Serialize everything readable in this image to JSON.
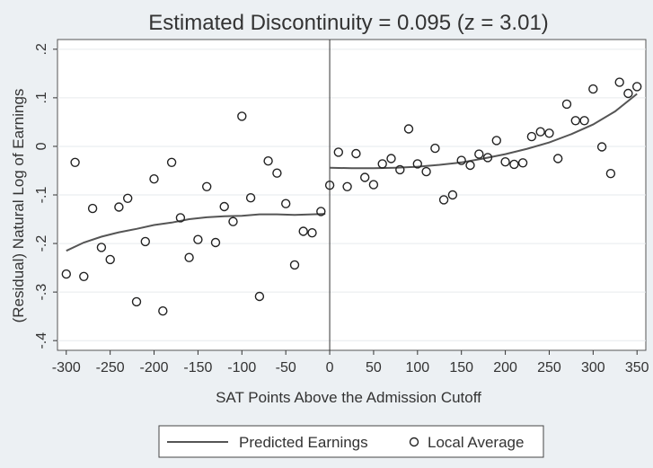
{
  "chart_data": {
    "type": "scatter",
    "title": "Estimated Discontinuity = 0.095 (z = 3.01)",
    "xlabel": "SAT Points Above the Admission Cutoff",
    "ylabel": "(Residual) Natural Log of Earnings",
    "xlim": [
      -310,
      360
    ],
    "ylim": [
      -0.42,
      0.22
    ],
    "xticks": [
      -300,
      -250,
      -200,
      -150,
      -100,
      -50,
      0,
      50,
      100,
      150,
      200,
      250,
      300,
      350
    ],
    "xtick_labels": [
      "-300",
      "-250",
      "-200",
      "-150",
      "-100",
      "-50",
      "0",
      "50",
      "100",
      "150",
      "200",
      "250",
      "300",
      "350"
    ],
    "yticks": [
      0.2,
      0.1,
      0,
      -0.1,
      -0.2,
      -0.3,
      -0.4
    ],
    "ytick_labels": [
      ".2",
      ".1",
      "0",
      "-.1",
      "-.2",
      "-.3",
      "-.4"
    ],
    "cutoff_x": 0,
    "grid": "horizontal",
    "legend_position": "bottom",
    "legend": [
      "Predicted Earnings",
      "Local Average"
    ],
    "series": [
      {
        "name": "Local Average",
        "kind": "points",
        "x": [
          -300,
          -290,
          -280,
          -270,
          -260,
          -250,
          -240,
          -230,
          -220,
          -210,
          -200,
          -190,
          -180,
          -170,
          -160,
          -150,
          -140,
          -130,
          -120,
          -110,
          -100,
          -90,
          -80,
          -70,
          -60,
          -50,
          -40,
          -30,
          -20,
          -10,
          0,
          10,
          20,
          30,
          40,
          50,
          60,
          70,
          80,
          90,
          100,
          110,
          120,
          130,
          140,
          150,
          160,
          170,
          180,
          190,
          200,
          210,
          220,
          230,
          240,
          250,
          260,
          270,
          280,
          290,
          300,
          310,
          320,
          330,
          340,
          350
        ],
        "y": [
          -0.263,
          -0.033,
          -0.268,
          -0.128,
          -0.208,
          -0.233,
          -0.125,
          -0.107,
          -0.32,
          -0.196,
          -0.067,
          -0.339,
          -0.033,
          -0.147,
          -0.229,
          -0.192,
          -0.083,
          -0.198,
          -0.124,
          -0.155,
          0.062,
          -0.106,
          -0.309,
          -0.03,
          -0.055,
          -0.118,
          -0.244,
          -0.175,
          -0.178,
          -0.134,
          -0.08,
          -0.012,
          -0.083,
          -0.015,
          -0.064,
          -0.079,
          -0.036,
          -0.025,
          -0.048,
          0.036,
          -0.036,
          -0.052,
          -0.004,
          -0.11,
          -0.1,
          -0.029,
          -0.039,
          -0.016,
          -0.023,
          0.012,
          -0.032,
          -0.037,
          -0.034,
          0.02,
          0.03,
          0.027,
          -0.025,
          0.087,
          0.053,
          0.053,
          0.118,
          -0.001,
          -0.056,
          0.132,
          0.109,
          0.123
        ]
      },
      {
        "name": "Predicted Earnings",
        "kind": "line",
        "segments": [
          {
            "x": [
              -300,
              -280,
              -260,
              -240,
              -220,
              -200,
              -180,
              -160,
              -140,
              -120,
              -100,
              -80,
              -60,
              -40,
              -20,
              -5
            ],
            "y": [
              -0.215,
              -0.198,
              -0.186,
              -0.177,
              -0.17,
              -0.162,
              -0.157,
              -0.15,
              -0.146,
              -0.144,
              -0.143,
              -0.14,
              -0.14,
              -0.141,
              -0.14,
              -0.139
            ]
          },
          {
            "x": [
              0,
              25,
              50,
              75,
              100,
              125,
              150,
              175,
              200,
              225,
              250,
              275,
              300,
              325,
              350
            ],
            "y": [
              -0.044,
              -0.045,
              -0.045,
              -0.044,
              -0.042,
              -0.038,
              -0.033,
              -0.025,
              -0.016,
              -0.005,
              0.008,
              0.025,
              0.045,
              0.072,
              0.108
            ]
          }
        ]
      }
    ]
  }
}
